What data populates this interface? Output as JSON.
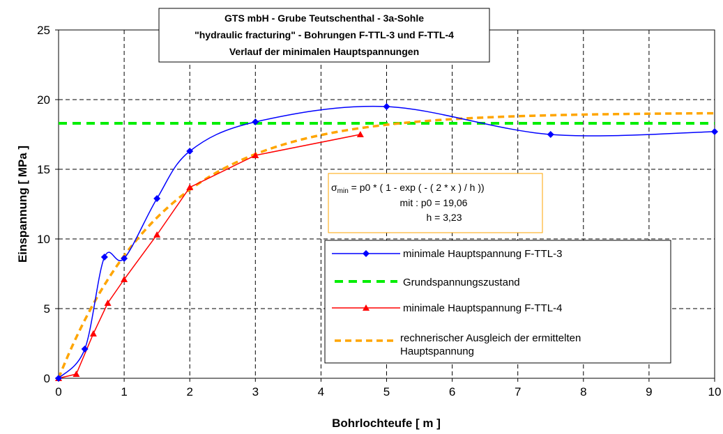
{
  "chart_data": {
    "type": "line",
    "title": [
      "GTS mbH - Grube Teutschenthal - 3a-Sohle",
      "\"hydraulic fracturing\" - Bohrungen F-TTL-3 und F-TTL-4",
      "Verlauf der minimalen Hauptspannungen"
    ],
    "xlabel": "Bohrlochteufe [ m ]",
    "ylabel": "Einspannung [ MPa ]",
    "xlim": [
      0,
      10
    ],
    "ylim": [
      0,
      25
    ],
    "xticks": [
      "0",
      "1",
      "2",
      "3",
      "4",
      "5",
      "6",
      "7",
      "8",
      "9",
      "10"
    ],
    "yticks": [
      "0",
      "5",
      "10",
      "15",
      "20",
      "25"
    ],
    "grid": true,
    "legend_position": "bottom-right",
    "series": [
      {
        "name": "minimale Hauptspannung F-TTL-3",
        "color": "#0000ff",
        "marker": "diamond",
        "line_style": "solid-smooth",
        "x": [
          0,
          0.4,
          0.7,
          1.0,
          1.5,
          2.0,
          3.0,
          5.0,
          7.5,
          10.0
        ],
        "y": [
          0.0,
          2.1,
          8.7,
          8.6,
          12.9,
          16.3,
          18.4,
          19.5,
          17.5,
          17.7
        ]
      },
      {
        "name": "Grundspannungszustand",
        "color": "#00ee00",
        "marker": "none",
        "line_style": "dashed",
        "x": [
          0,
          10
        ],
        "y": [
          18.3,
          18.3
        ]
      },
      {
        "name": "minimale Hauptspannung F-TTL-4",
        "color": "#ff0000",
        "marker": "triangle",
        "line_style": "solid",
        "x": [
          0.0,
          0.27,
          0.53,
          0.75,
          1.0,
          1.5,
          2.0,
          3.0,
          4.6
        ],
        "y": [
          0.0,
          0.3,
          3.2,
          5.4,
          7.1,
          10.3,
          13.7,
          16.0,
          17.5
        ]
      },
      {
        "name": "rechnerischer Ausgleich der ermittelten Hauptspannung",
        "color": "#ffa500",
        "marker": "none",
        "line_style": "dotted",
        "function": "p0*(1-exp(-(2*x)/h))",
        "p0": 19.06,
        "h": 3.23,
        "x_range": [
          0,
          10
        ]
      }
    ],
    "annotations": {
      "formula_line1_prefix": "σ",
      "formula_line1_sub": "min",
      "formula_line1_rest": " = p0 * ( 1 - exp ( - ( 2 * x ) / h ))",
      "formula_line2": "mit : p0 = 19,06",
      "formula_line3": "h = 3,23"
    }
  }
}
